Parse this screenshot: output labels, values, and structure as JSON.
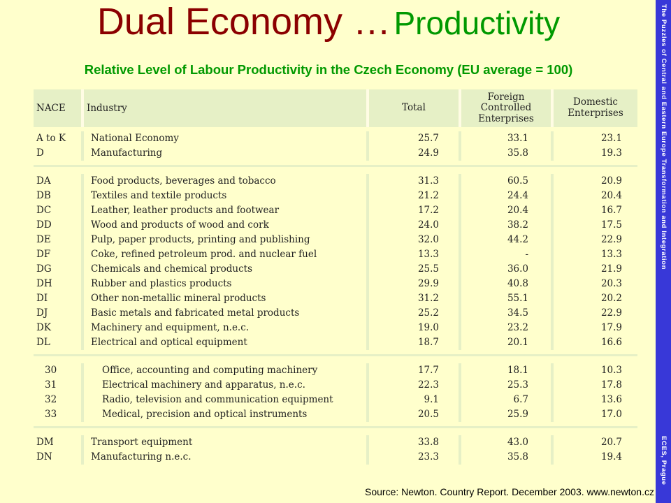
{
  "title": {
    "part1": "Dual Economy …",
    "part2": "Productivity"
  },
  "subtitle": "Relative Level of Labour Productivity in the Czech Economy (EU average = 100)",
  "sidebar": {
    "top_text": "The Puzzles of Central and Eastern Europe Transformation and Integration",
    "bottom_text": "ECES, Prague"
  },
  "source": "Source: Newton. Country Report. December 2003. www.newton.cz",
  "table": {
    "headers": {
      "nace": "NACE",
      "industry": "Industry",
      "total": "Total",
      "fce_line1": "Foreign",
      "fce_line2": "Controlled",
      "fce_line3": "Enterprises",
      "de_line1": "Domestic",
      "de_line2": "Enterprises"
    },
    "groups": [
      [
        [
          "A to K",
          "National Economy",
          "25.7",
          "33.1",
          "23.1"
        ],
        [
          "D",
          "Manufacturing",
          "24.9",
          "35.8",
          "19.3"
        ]
      ],
      [
        [
          "DA",
          "Food products, beverages and tobacco",
          "31.3",
          "60.5",
          "20.9"
        ],
        [
          "DB",
          "Textiles and textile products",
          "21.2",
          "24.4",
          "20.4"
        ],
        [
          "DC",
          "Leather, leather products and footwear",
          "17.2",
          "20.4",
          "16.7"
        ],
        [
          "DD",
          "Wood and products of wood and cork",
          "24.0",
          "38.2",
          "17.5"
        ],
        [
          "DE",
          "Pulp, paper products, printing and publishing",
          "32.0",
          "44.2",
          "22.9"
        ],
        [
          "DF",
          "Coke, refined petroleum prod. and nuclear fuel",
          "13.3",
          "-",
          "13.3"
        ],
        [
          "DG",
          "Chemicals and chemical products",
          "25.5",
          "36.0",
          "21.9"
        ],
        [
          "DH",
          "Rubber and plastics products",
          "29.9",
          "40.8",
          "20.3"
        ],
        [
          "DI",
          "Other non-metallic mineral products",
          "31.2",
          "55.1",
          "20.2"
        ],
        [
          "DJ",
          "Basic metals and fabricated metal products",
          "25.2",
          "34.5",
          "22.9"
        ],
        [
          "DK",
          "Machinery and equipment, n.e.c.",
          "19.0",
          "23.2",
          "17.9"
        ],
        [
          "DL",
          "Electrical and optical equipment",
          "18.7",
          "20.1",
          "16.6"
        ]
      ],
      [
        [
          "30",
          "Office, accounting and computing machinery",
          "17.7",
          "18.1",
          "10.3"
        ],
        [
          "31",
          "Electrical machinery and apparatus, n.e.c.",
          "22.3",
          "25.3",
          "17.8"
        ],
        [
          "32",
          "Radio, television and communication equipment",
          "9.1",
          "6.7",
          "13.6"
        ],
        [
          "33",
          "Medical, precision and optical instruments",
          "20.5",
          "25.9",
          "17.0"
        ]
      ],
      [
        [
          "DM",
          "Transport equipment",
          "33.8",
          "43.0",
          "20.7"
        ],
        [
          "DN",
          "Manufacturing n.e.c.",
          "23.3",
          "35.8",
          "19.4"
        ]
      ]
    ]
  }
}
